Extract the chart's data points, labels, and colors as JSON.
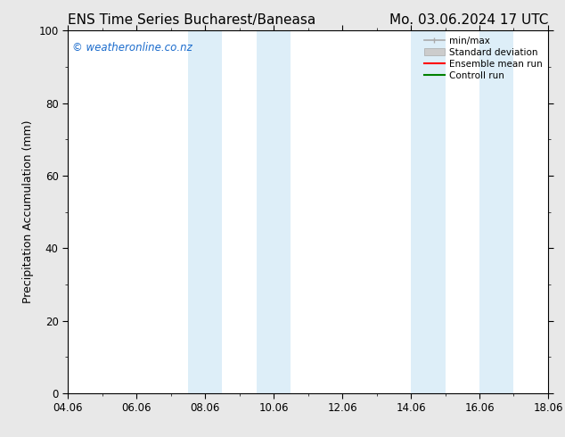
{
  "title_left": "ENS Time Series Bucharest/Baneasa",
  "title_right": "Mo. 03.06.2024 17 UTC",
  "ylabel": "Precipitation Accumulation (mm)",
  "ylim": [
    0,
    100
  ],
  "yticks": [
    0,
    20,
    40,
    60,
    80,
    100
  ],
  "xtick_labels": [
    "04.06",
    "06.06",
    "08.06",
    "10.06",
    "12.06",
    "14.06",
    "16.06",
    "18.06"
  ],
  "xmin": 0,
  "xmax": 14,
  "shade_regions": [
    {
      "xmin": 3.5,
      "xmax": 4.5,
      "color": "#ddeef8"
    },
    {
      "xmin": 5.5,
      "xmax": 6.5,
      "color": "#ddeef8"
    },
    {
      "xmin": 10.0,
      "xmax": 11.0,
      "color": "#ddeef8"
    },
    {
      "xmin": 12.0,
      "xmax": 13.0,
      "color": "#ddeef8"
    }
  ],
  "watermark_text": "© weatheronline.co.nz",
  "watermark_color": "#1a6bcc",
  "legend_items": [
    {
      "label": "min/max",
      "color": "#aaaaaa",
      "lw": 1.2
    },
    {
      "label": "Standard deviation",
      "color": "#cccccc",
      "lw": 6
    },
    {
      "label": "Ensemble mean run",
      "color": "red",
      "lw": 1.5
    },
    {
      "label": "Controll run",
      "color": "green",
      "lw": 1.5
    }
  ],
  "fig_bg_color": "#e8e8e8",
  "plot_bg_color": "#ffffff",
  "title_fontsize": 11,
  "tick_fontsize": 8.5,
  "ylabel_fontsize": 9,
  "watermark_fontsize": 8.5
}
